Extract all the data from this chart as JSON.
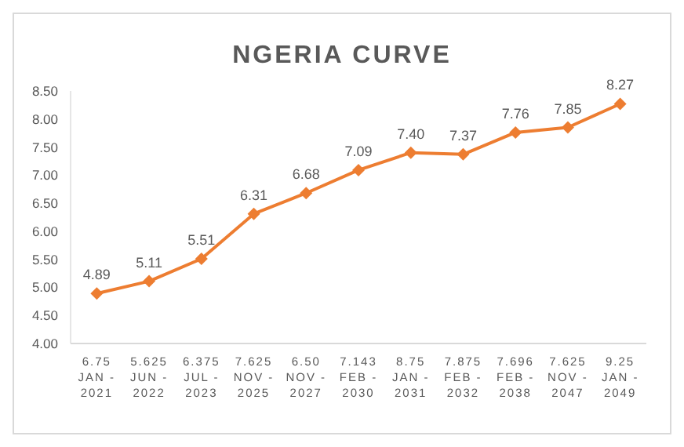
{
  "chart_data": {
    "type": "line",
    "title": "NGERIA CURVE",
    "categories": [
      "6.75\nJAN -\n2021",
      "5.625\nJUN -\n2022",
      "6.375\nJUL -\n2023",
      "7.625\nNOV -\n2025",
      "6.50\nNOV -\n2027",
      "7.143\nFEB -\n2030",
      "8.75\nJAN -\n2031",
      "7.875\nFEB -\n2032",
      "7.696\nFEB -\n2038",
      "7.625\nNOV -\n2047",
      "9.25\nJAN -\n2049"
    ],
    "series": [
      {
        "color": "#ed7d31",
        "values": [
          4.89,
          5.11,
          5.51,
          6.31,
          6.68,
          7.09,
          7.4,
          7.37,
          7.76,
          7.85,
          8.27
        ],
        "value_labels": [
          "4.89",
          "5.11",
          "5.51",
          "6.31",
          "6.68",
          "7.09",
          "7.40",
          "7.37",
          "7.76",
          "7.85",
          "8.27"
        ]
      }
    ],
    "ylim": [
      4,
      8.5
    ],
    "yticks": [
      {
        "value": 4,
        "label": "4.00"
      },
      {
        "value": 4.5,
        "label": "4.50"
      },
      {
        "value": 5,
        "label": "5.00"
      },
      {
        "value": 5.5,
        "label": "5.50"
      },
      {
        "value": 6,
        "label": "6.00"
      },
      {
        "value": 6.5,
        "label": "6.50"
      },
      {
        "value": 7,
        "label": "7.00"
      },
      {
        "value": 7.5,
        "label": "7.50"
      },
      {
        "value": 8,
        "label": "8.00"
      },
      {
        "value": 8.5,
        "label": "8.50"
      }
    ],
    "marker": "diamond",
    "line_style": "solid",
    "grid": false
  }
}
